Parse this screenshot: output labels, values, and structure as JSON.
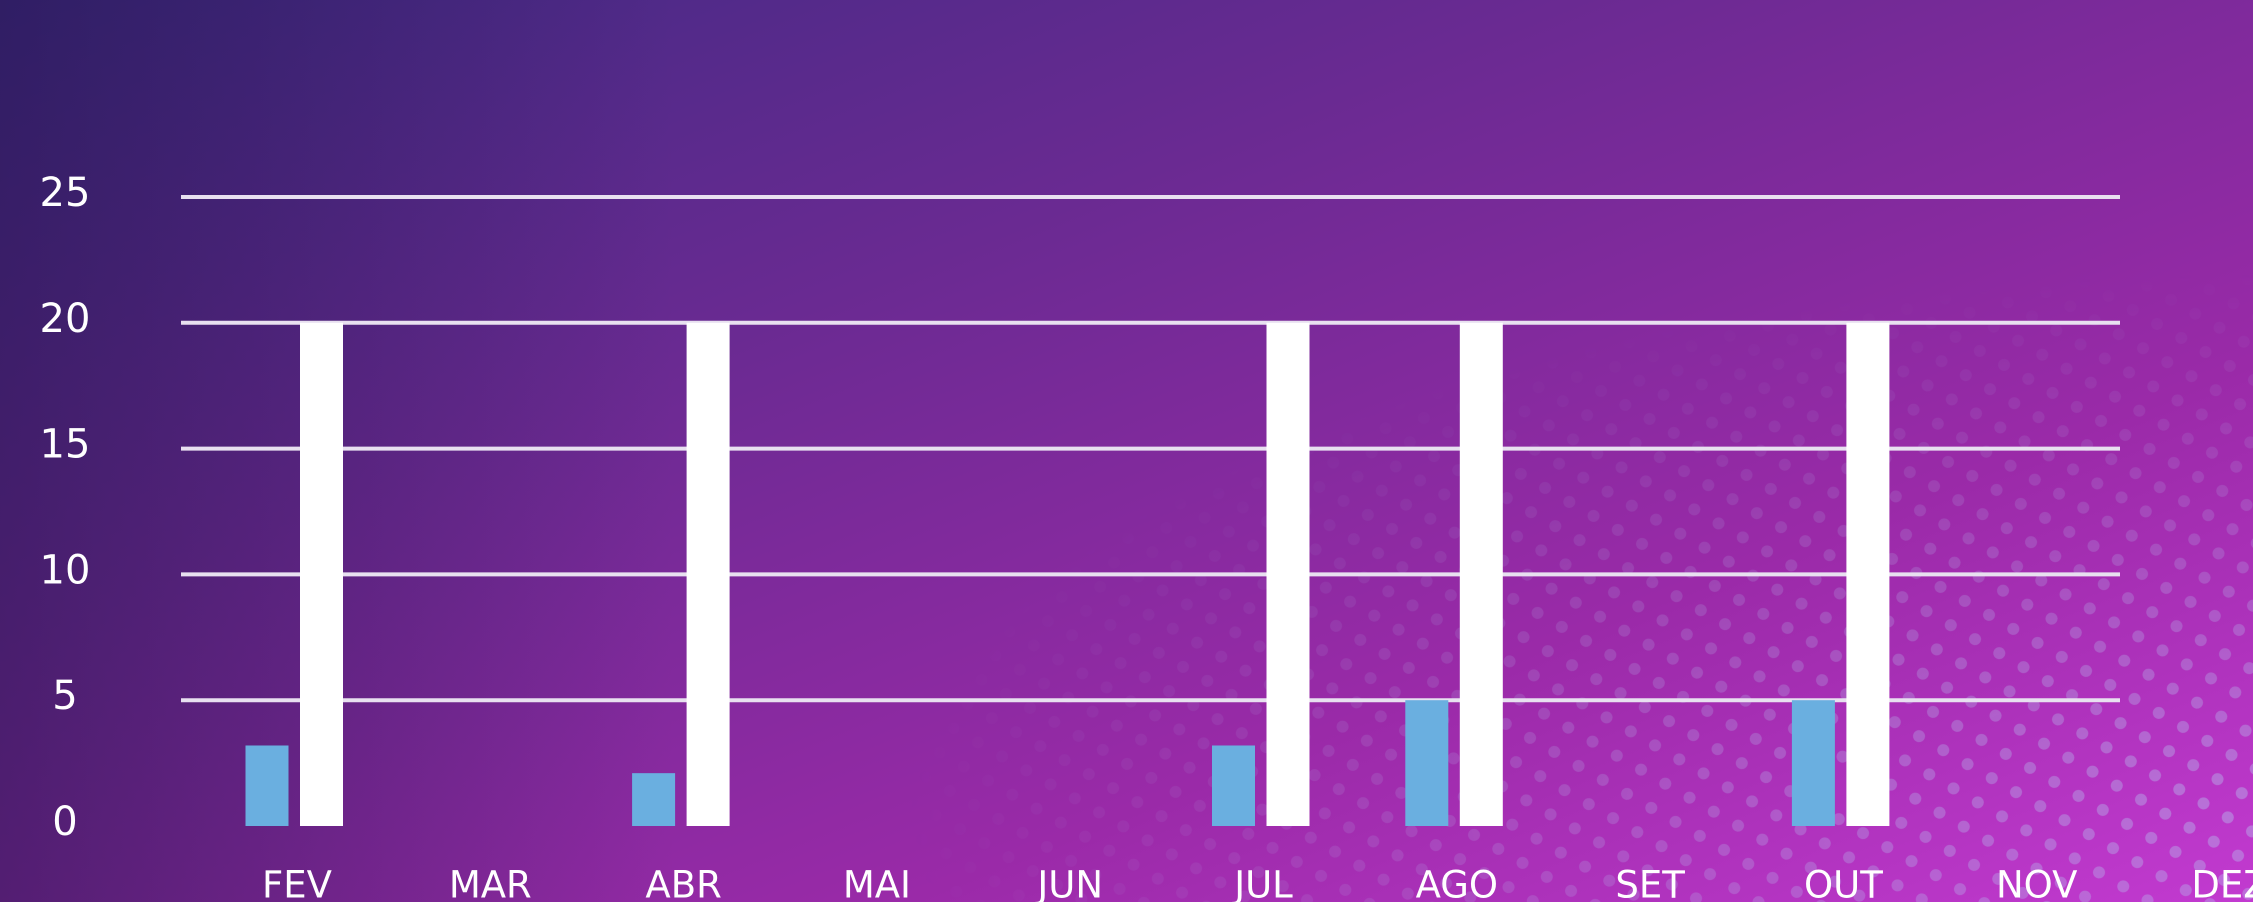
{
  "chart_data": {
    "type": "bar",
    "categories": [
      "FEV",
      "MAR",
      "ABR",
      "MAI",
      "JUN",
      "JUL",
      "AGO",
      "SET",
      "OUT",
      "NOV",
      "DEZ"
    ],
    "series": [
      {
        "color": "#6aafe0",
        "values": [
          3.2,
          null,
          2.1,
          null,
          null,
          3.2,
          5,
          null,
          5,
          null,
          null
        ]
      },
      {
        "color": "#ffffff",
        "values": [
          20,
          null,
          20,
          null,
          null,
          20,
          20,
          null,
          20,
          null,
          null
        ]
      }
    ],
    "ylim": [
      0,
      25
    ],
    "yticks": [
      0,
      5,
      10,
      15,
      20,
      25
    ],
    "grid": true
  }
}
